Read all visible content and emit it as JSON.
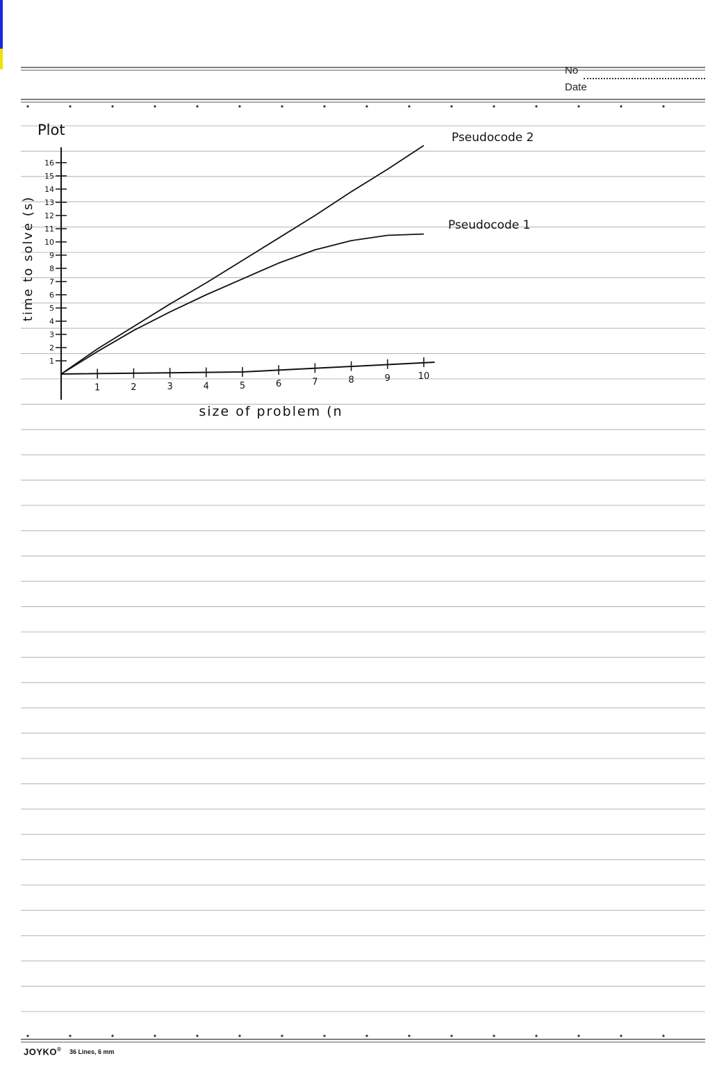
{
  "header": {
    "no_label": "No",
    "date_label": "Date"
  },
  "footer": {
    "brand": "JOYKO",
    "brand_mark": "®",
    "spec": "36 Lines, 6 mm"
  },
  "colors": {
    "edge_blue": "#1b2ad6",
    "edge_yellow": "#f2e200",
    "ink": "#111111",
    "rule": "#b8b8b8"
  },
  "chart_data": {
    "type": "line",
    "title": "Plot",
    "xlabel": "size of problem (n",
    "ylabel": "time to solve (s)",
    "xlim": [
      0,
      10
    ],
    "ylim": [
      0,
      16
    ],
    "xticks": [
      "1",
      "2",
      "3",
      "4",
      "5",
      "6",
      "7",
      "8",
      "9",
      "10"
    ],
    "yticks": [
      "1",
      "2",
      "3",
      "4",
      "5",
      "6",
      "7",
      "8",
      "9",
      "10",
      "11",
      "12",
      "13",
      "14",
      "15",
      "16"
    ],
    "grid": false,
    "series": [
      {
        "name": "Pseudocode 2",
        "x": [
          0,
          1,
          2,
          3,
          4,
          5,
          6,
          7,
          8,
          9,
          10
        ],
        "y": [
          0,
          1.9,
          3.6,
          5.3,
          6.9,
          8.6,
          10.3,
          12.0,
          13.8,
          15.5,
          17.3
        ]
      },
      {
        "name": "Pseudocode 1",
        "x": [
          0,
          1,
          2,
          3,
          4,
          5,
          6,
          7,
          8,
          9,
          10
        ],
        "y": [
          0,
          1.7,
          3.3,
          4.7,
          6.0,
          7.2,
          8.4,
          9.4,
          10.1,
          10.5,
          10.6
        ]
      }
    ]
  }
}
